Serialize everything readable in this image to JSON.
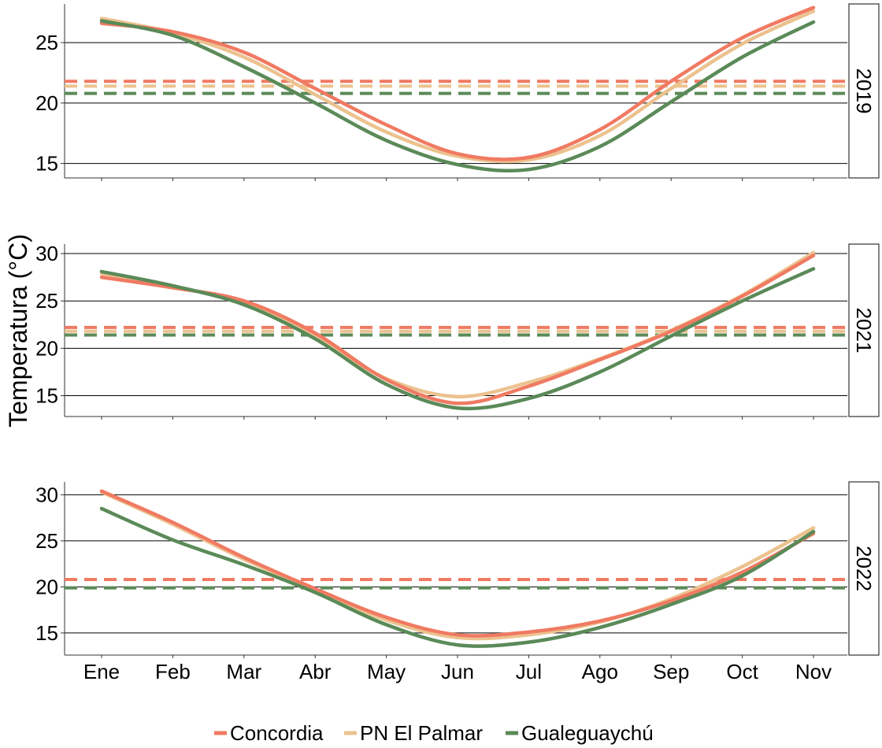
{
  "chart_data": {
    "type": "line",
    "ylabel": "Temperatura (°C)",
    "xlabel": "",
    "x_categories": [
      "Ene",
      "Feb",
      "Mar",
      "Abr",
      "May",
      "Jun",
      "Jul",
      "Ago",
      "Sep",
      "Oct",
      "Nov"
    ],
    "legend": {
      "position": "bottom",
      "entries": [
        "Concordia",
        "PN El Palmar",
        "Gualeguaychú"
      ]
    },
    "colors": {
      "Concordia": "#f07a62",
      "PN El Palmar": "#ecc28f",
      "Gualeguaychú": "#5a8a58"
    },
    "grid": "major horizontal only",
    "line_style": "smoothed solid lines; dashed horizontal lines mark each station's annual mean",
    "panels": [
      {
        "year": "2019",
        "ylim": [
          13.8,
          28.2
        ],
        "yticks": [
          15,
          20,
          25
        ],
        "series": [
          {
            "name": "Concordia",
            "values": [
              26.6,
              25.9,
              24.2,
              21.2,
              18.2,
              15.8,
              15.5,
              17.8,
              21.8,
              25.4,
              27.9
            ],
            "mean": 21.8
          },
          {
            "name": "PN El Palmar",
            "values": [
              27.0,
              25.8,
              23.8,
              20.7,
              17.6,
              15.6,
              15.3,
              17.3,
              21.2,
              24.9,
              27.6
            ],
            "mean": 21.4
          },
          {
            "name": "Gualeguaychú",
            "values": [
              26.8,
              25.6,
              23.0,
              20.0,
              16.9,
              14.9,
              14.5,
              16.4,
              20.1,
              23.8,
              26.7
            ],
            "mean": 20.8
          }
        ]
      },
      {
        "year": "2021",
        "ylim": [
          12.8,
          31.0
        ],
        "yticks": [
          15,
          20,
          25,
          30
        ],
        "series": [
          {
            "name": "Concordia",
            "values": [
              27.5,
              26.4,
              25.0,
              21.6,
              16.7,
              14.2,
              16.0,
              18.8,
              21.8,
              25.5,
              29.8
            ],
            "mean": 22.2
          },
          {
            "name": "PN El Palmar",
            "values": [
              27.9,
              26.5,
              24.8,
              21.2,
              16.8,
              14.9,
              16.4,
              18.9,
              21.9,
              25.6,
              30.1
            ],
            "mean": 21.8
          },
          {
            "name": "Gualeguaychú",
            "values": [
              28.1,
              26.6,
              24.6,
              21.0,
              16.2,
              13.7,
              14.7,
              17.5,
              21.3,
              25.0,
              28.4
            ],
            "mean": 21.4
          }
        ]
      },
      {
        "year": "2022",
        "ylim": [
          12.6,
          31.4
        ],
        "yticks": [
          15,
          20,
          25,
          30
        ],
        "series": [
          {
            "name": "Concordia",
            "values": [
              30.4,
              27.0,
              23.2,
              19.8,
              16.7,
              14.8,
              15.1,
              16.3,
              18.5,
              21.6,
              25.8
            ],
            "mean": 20.8
          },
          {
            "name": "PN El Palmar",
            "values": [
              30.3,
              26.8,
              23.0,
              19.7,
              16.4,
              14.5,
              14.8,
              16.2,
              18.7,
              22.2,
              26.4
            ],
            "mean": 20.8
          },
          {
            "name": "Gualeguaychú",
            "values": [
              28.5,
              25.1,
              22.4,
              19.4,
              15.9,
              13.7,
              14.0,
              15.6,
              18.1,
              21.2,
              26.0
            ],
            "mean": 19.9
          }
        ]
      }
    ]
  }
}
